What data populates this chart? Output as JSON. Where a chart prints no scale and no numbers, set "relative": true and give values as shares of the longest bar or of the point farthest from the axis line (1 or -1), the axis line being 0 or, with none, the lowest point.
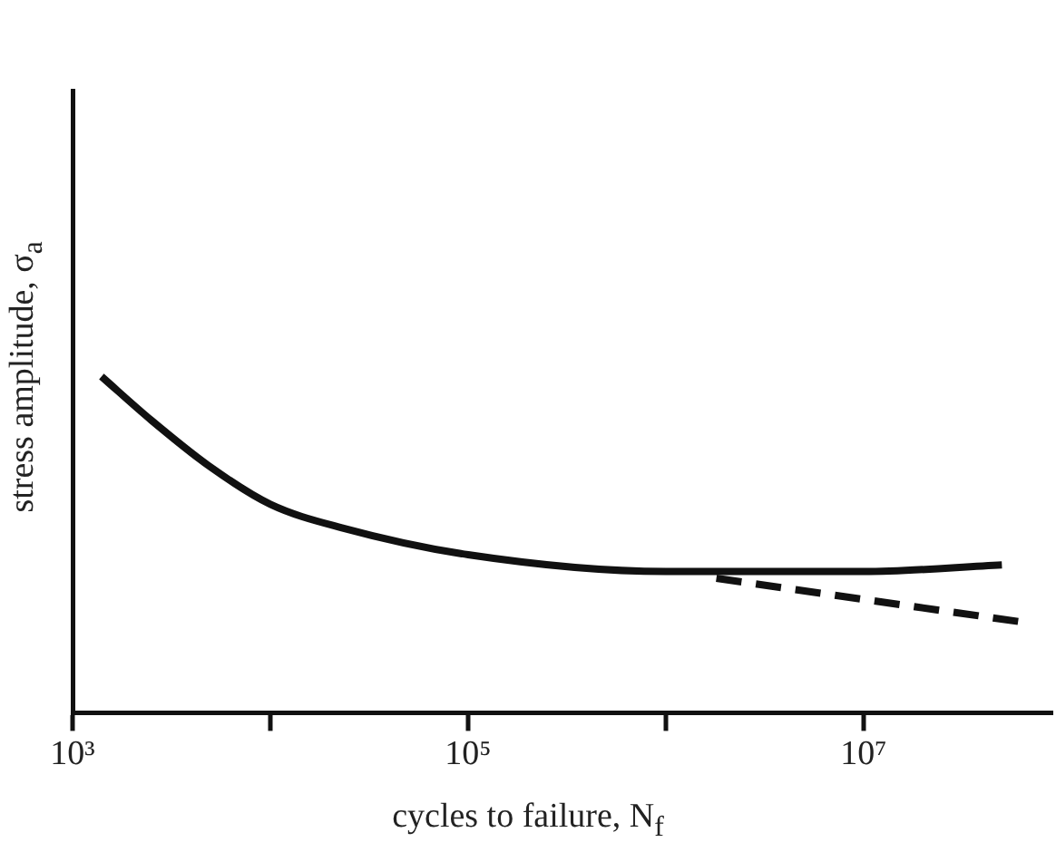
{
  "chart_data": {
    "type": "line",
    "xlabel": "cycles to failure, N$_{f}$",
    "ylabel": "stress amplitude, σ$_{a}$",
    "relative": true,
    "log": "x",
    "xlim": [
      1000,
      90000000
    ],
    "xticks": [
      {
        "value": 1000,
        "label": "10³"
      },
      {
        "value": 10000,
        "label": null
      },
      {
        "value": 100000,
        "label": "10⁵"
      },
      {
        "value": 1000000,
        "label": null
      },
      {
        "value": 10000000,
        "label": "10⁷"
      }
    ],
    "grid": false,
    "legend": false,
    "marker": "none",
    "series": [
      {
        "color": "#111111",
        "x": [
          1400,
          2500,
          5000,
          10000,
          23000,
          100000,
          1000000,
          10000000,
          50000000
        ],
        "values": [
          1,
          0.87,
          0.73,
          0.62,
          0.55,
          0.47,
          0.42,
          0.42,
          0.44
        ]
      },
      {
        "color": "#111111",
        "line_style": "dashed",
        "x": [
          1800000,
          63000000
        ],
        "values": [
          0.4,
          0.27
        ]
      }
    ]
  }
}
